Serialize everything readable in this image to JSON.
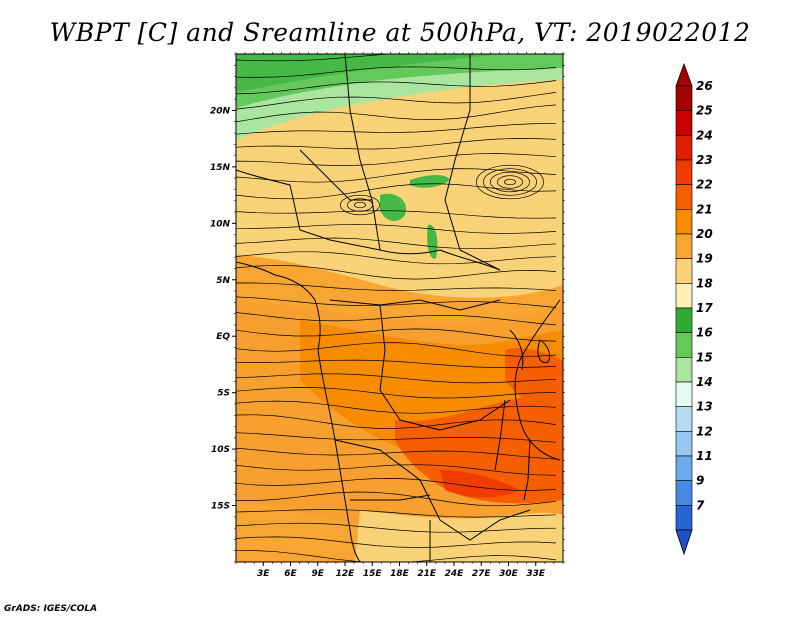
{
  "title": "WBPT [C] and Sreamline at 500hPa, VT: 2019022012",
  "credit": "GrADS: IGES/COLA",
  "map": {
    "lon_range": [
      0,
      36
    ],
    "lat_range": [
      -20,
      25
    ],
    "lat_ticks": [
      {
        "value": 20,
        "label": "20N"
      },
      {
        "value": 15,
        "label": "15N"
      },
      {
        "value": 10,
        "label": "10N"
      },
      {
        "value": 5,
        "label": "5N"
      },
      {
        "value": 0,
        "label": "EQ"
      },
      {
        "value": -5,
        "label": "5S"
      },
      {
        "value": -10,
        "label": "10S"
      },
      {
        "value": -15,
        "label": "15S"
      }
    ],
    "lon_ticks": [
      {
        "value": 3,
        "label": "3E"
      },
      {
        "value": 6,
        "label": "6E"
      },
      {
        "value": 9,
        "label": "9E"
      },
      {
        "value": 12,
        "label": "12E"
      },
      {
        "value": 15,
        "label": "15E"
      },
      {
        "value": 18,
        "label": "18E"
      },
      {
        "value": 21,
        "label": "21E"
      },
      {
        "value": 24,
        "label": "24E"
      },
      {
        "value": 27,
        "label": "27E"
      },
      {
        "value": 30,
        "label": "30E"
      },
      {
        "value": 33,
        "label": "33E"
      }
    ]
  },
  "colorbar": {
    "levels": [
      {
        "label": "26",
        "color": "#a50000"
      },
      {
        "label": "25",
        "color": "#c80000"
      },
      {
        "label": "24",
        "color": "#e01e00"
      },
      {
        "label": "23",
        "color": "#f03c00"
      },
      {
        "label": "22",
        "color": "#f55f00"
      },
      {
        "label": "21",
        "color": "#f78c00"
      },
      {
        "label": "20",
        "color": "#f8a532"
      },
      {
        "label": "19",
        "color": "#fad278"
      },
      {
        "label": "18",
        "color": "#fdf0b4"
      },
      {
        "label": "17",
        "color": "#2daa32"
      },
      {
        "label": "16",
        "color": "#64c85a"
      },
      {
        "label": "15",
        "color": "#aae6a0"
      },
      {
        "label": "14",
        "color": "#e6faf0"
      },
      {
        "label": "13",
        "color": "#b4dcf5"
      },
      {
        "label": "12",
        "color": "#96c8f0"
      },
      {
        "label": "11",
        "color": "#6eaaeb"
      },
      {
        "label": "9",
        "color": "#468ce6"
      },
      {
        "label": "7",
        "color": "#2864d2"
      }
    ],
    "bottom_color": "#1e50c8"
  }
}
